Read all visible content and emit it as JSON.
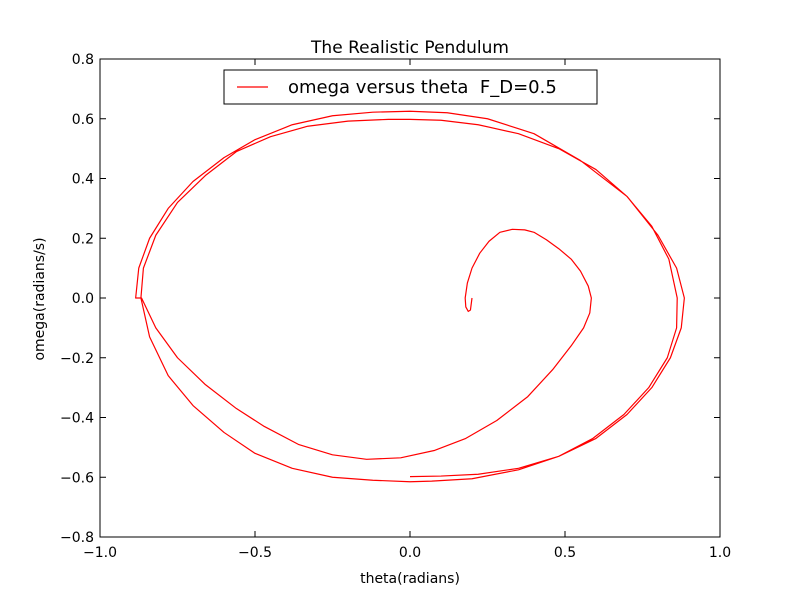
{
  "chart_data": {
    "type": "line",
    "title": "The Realistic Pendulum",
    "xlabel": "theta(radians)",
    "ylabel": "omega(radians/s)",
    "xlim": [
      -1.0,
      1.0
    ],
    "ylim": [
      -0.8,
      0.8
    ],
    "xticks": [
      -1.0,
      -0.5,
      0.0,
      0.5,
      1.0
    ],
    "xtick_labels": [
      "−1.0",
      "−0.5",
      "0.0",
      "0.5",
      "1.0"
    ],
    "yticks": [
      -0.8,
      -0.6,
      -0.4,
      -0.2,
      0.0,
      0.2,
      0.4,
      0.6,
      0.8
    ],
    "ytick_labels": [
      "−0.8",
      "−0.6",
      "−0.4",
      "−0.2",
      "0.0",
      "0.2",
      "0.4",
      "0.6",
      "0.8"
    ],
    "grid": false,
    "legend": {
      "position": "top-center"
    },
    "series": [
      {
        "name": "omega versus theta  F_D=0.5",
        "color": "#ff0000",
        "x": [
          0.2,
          0.195,
          0.188,
          0.18,
          0.178,
          0.185,
          0.2,
          0.225,
          0.255,
          0.29,
          0.33,
          0.37,
          0.4,
          0.44,
          0.48,
          0.52,
          0.55,
          0.575,
          0.585,
          0.58,
          0.56,
          0.52,
          0.46,
          0.38,
          0.28,
          0.18,
          0.08,
          -0.03,
          -0.14,
          -0.25,
          -0.36,
          -0.47,
          -0.56,
          -0.66,
          -0.75,
          -0.82,
          -0.866,
          -0.885,
          -0.875,
          -0.84,
          -0.78,
          -0.7,
          -0.6,
          -0.5,
          -0.38,
          -0.25,
          -0.12,
          0.0,
          0.12,
          0.25,
          0.4,
          0.55,
          0.7,
          0.8,
          0.86,
          0.885,
          0.875,
          0.84,
          0.78,
          0.7,
          0.6,
          0.48,
          0.35,
          0.2,
          0.07,
          0.0,
          -0.12,
          -0.25,
          -0.38,
          -0.5,
          -0.6,
          -0.7,
          -0.78,
          -0.84,
          -0.868,
          -0.86,
          -0.82,
          -0.75,
          -0.66,
          -0.56,
          -0.45,
          -0.33,
          -0.2,
          -0.07,
          0.0,
          0.1,
          0.22,
          0.35,
          0.48,
          0.6,
          0.7,
          0.78,
          0.835,
          0.862,
          0.86,
          0.83,
          0.77,
          0.69,
          0.59,
          0.48,
          0.35,
          0.22,
          0.1,
          0.0
        ],
        "y": [
          0.0,
          -0.04,
          -0.045,
          -0.03,
          0.0,
          0.05,
          0.1,
          0.15,
          0.19,
          0.22,
          0.23,
          0.228,
          0.22,
          0.195,
          0.165,
          0.13,
          0.09,
          0.04,
          0.0,
          -0.05,
          -0.1,
          -0.16,
          -0.24,
          -0.33,
          -0.41,
          -0.47,
          -0.51,
          -0.535,
          -0.54,
          -0.525,
          -0.49,
          -0.43,
          -0.37,
          -0.29,
          -0.2,
          -0.1,
          0.0,
          0.0,
          0.1,
          0.2,
          0.3,
          0.39,
          0.47,
          0.53,
          0.58,
          0.61,
          0.622,
          0.625,
          0.62,
          0.6,
          0.55,
          0.46,
          0.34,
          0.21,
          0.1,
          0.0,
          -0.1,
          -0.2,
          -0.3,
          -0.39,
          -0.47,
          -0.53,
          -0.575,
          -0.605,
          -0.613,
          -0.615,
          -0.61,
          -0.6,
          -0.57,
          -0.52,
          -0.45,
          -0.36,
          -0.26,
          -0.13,
          0.0,
          0.1,
          0.21,
          0.32,
          0.41,
          0.49,
          0.54,
          0.575,
          0.592,
          0.598,
          0.598,
          0.595,
          0.58,
          0.55,
          0.5,
          0.43,
          0.34,
          0.24,
          0.13,
          0.0,
          -0.1,
          -0.2,
          -0.3,
          -0.39,
          -0.47,
          -0.53,
          -0.57,
          -0.59,
          -0.596,
          -0.598
        ]
      }
    ]
  }
}
